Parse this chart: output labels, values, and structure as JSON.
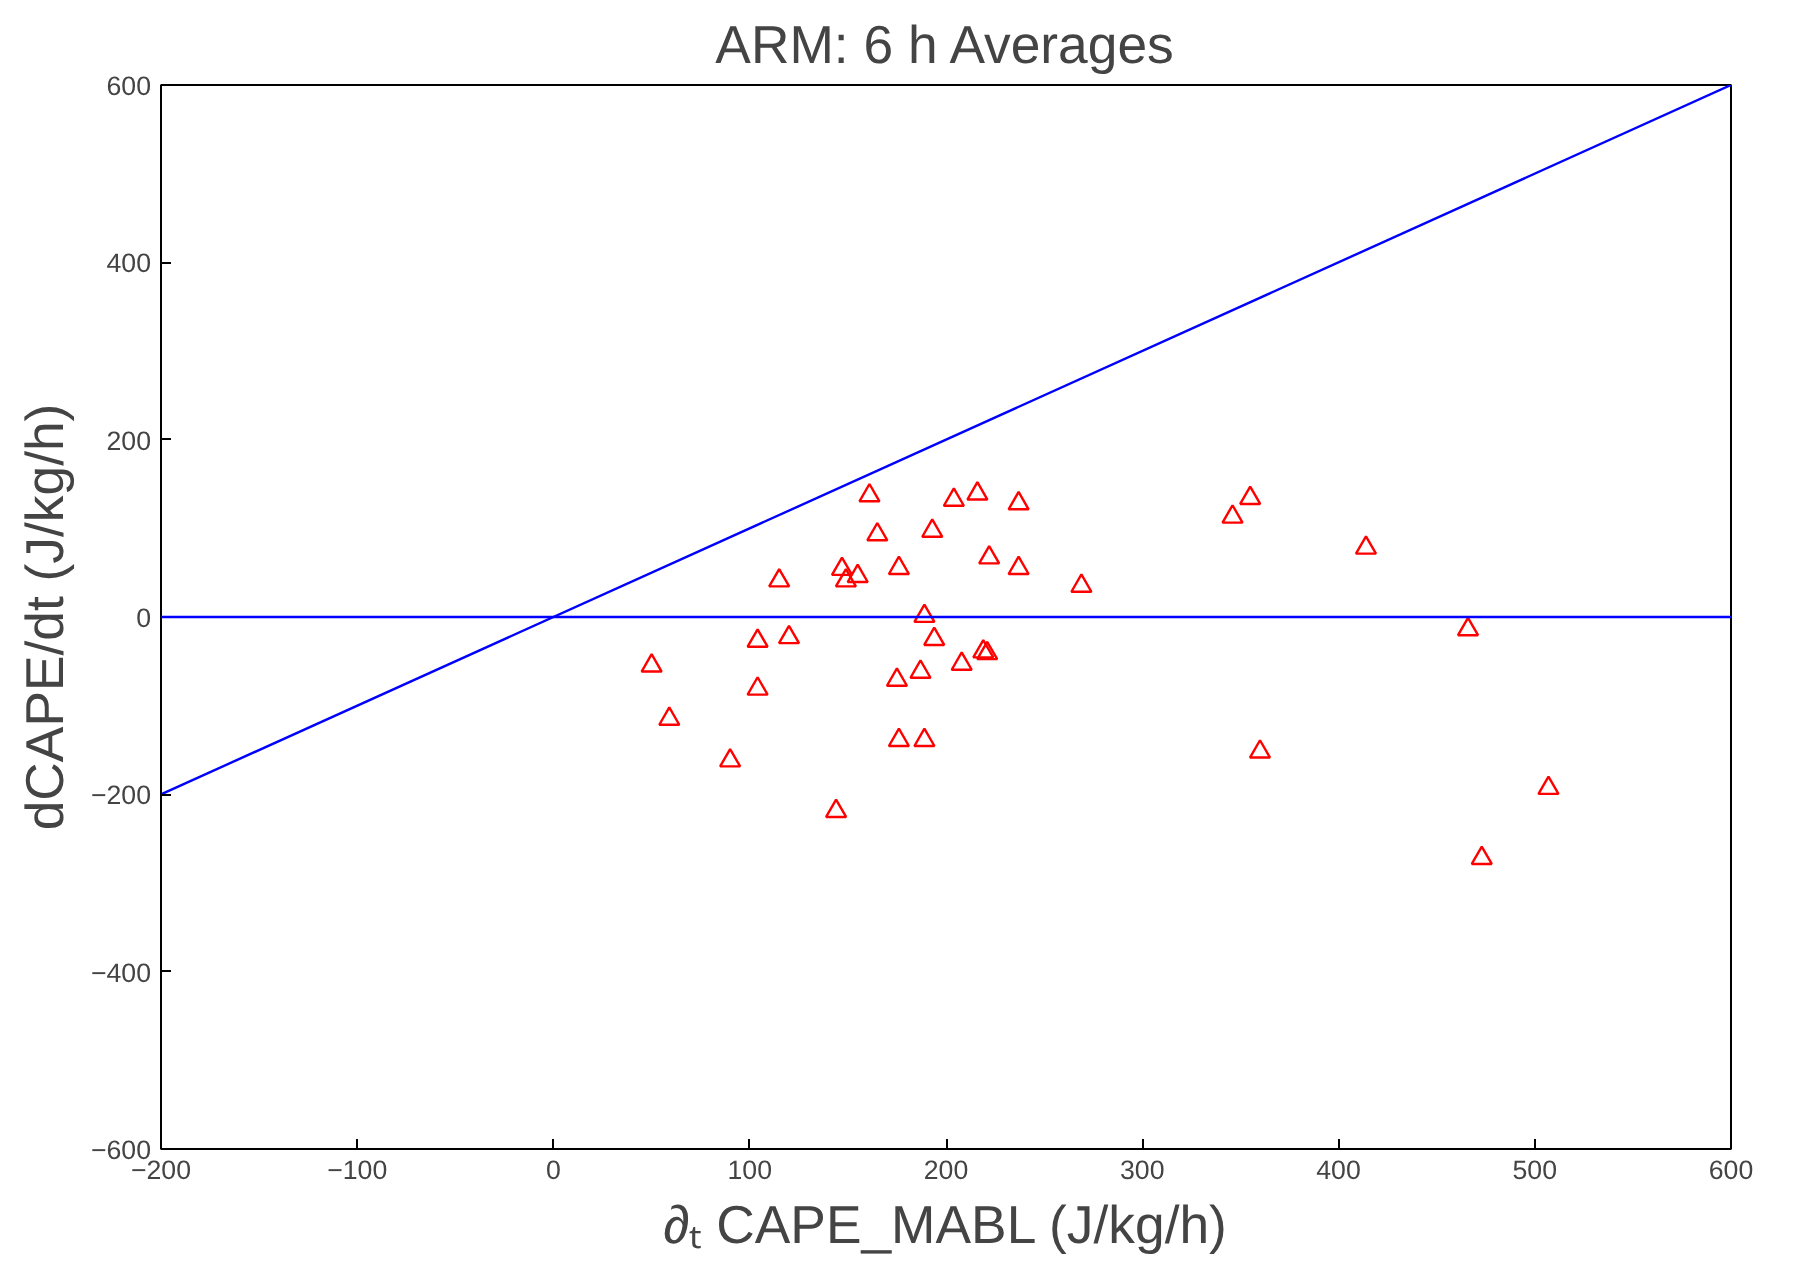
{
  "chart_data": {
    "type": "scatter",
    "title": "ARM: 6 h Averages",
    "xlabel": "∂ₜ CAPE_MABL (J/kg/h)",
    "ylabel": "dCAPE/dt (J/kg/h)",
    "xlim": [
      -200,
      600
    ],
    "ylim": [
      -600,
      600
    ],
    "xticks": [
      -200,
      -100,
      0,
      100,
      200,
      300,
      400,
      500,
      600
    ],
    "yticks": [
      -600,
      -400,
      -200,
      0,
      200,
      400,
      600
    ],
    "grid": false,
    "ref_lines": [
      {
        "axis": "y",
        "value": 0,
        "color": "#0000ff"
      }
    ],
    "series": [
      {
        "color": "#ff0000",
        "marker": "triangle",
        "x": [
          50,
          59,
          90,
          104,
          104,
          120,
          115,
          144,
          147,
          149,
          155,
          161,
          165,
          175,
          176,
          176,
          187,
          189,
          189,
          193,
          194,
          204,
          208,
          216,
          219,
          221,
          222,
          237,
          237,
          269,
          346,
          355,
          360,
          414,
          466,
          473,
          507
        ],
        "values": [
          -55,
          -115,
          -162,
          -27,
          -81,
          -23,
          41,
          -219,
          54,
          41,
          46,
          137,
          93,
          -71,
          55,
          -139,
          -62,
          -139,
          1,
          97,
          -25,
          132,
          -53,
          139,
          -39,
          -41,
          67,
          128,
          55,
          35,
          113,
          134,
          -152,
          78,
          -14,
          -272,
          -193
        ]
      },
      {
        "type": "line",
        "color": "#0000ff",
        "marker": "none",
        "line_style": "solid",
        "x": [
          -200,
          600
        ],
        "values": [
          -200,
          600
        ]
      }
    ]
  }
}
